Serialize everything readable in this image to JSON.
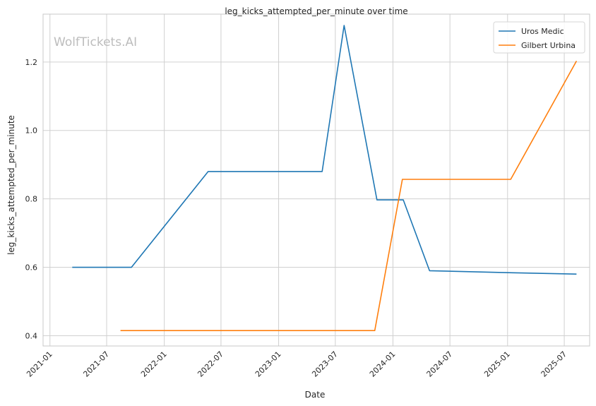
{
  "chart_data": {
    "type": "line",
    "title": "leg_kicks_attempted_per_minute over time",
    "xlabel": "Date",
    "ylabel": "leg_kicks_attempted_per_minute",
    "watermark": "WolfTickets.AI",
    "x_ticks": [
      "2021-01",
      "2021-07",
      "2022-01",
      "2022-07",
      "2023-01",
      "2023-07",
      "2024-01",
      "2024-07",
      "2025-01",
      "2025-07"
    ],
    "y_ticks": [
      "0.4",
      "0.6",
      "0.8",
      "1.0",
      "1.2"
    ],
    "xlim": [
      "2020-12-10",
      "2025-09-20"
    ],
    "ylim": [
      0.37,
      1.34
    ],
    "grid": true,
    "legend_position": "top-right",
    "series": [
      {
        "name": "Uros Medic",
        "color": "#1f77b4",
        "points": [
          {
            "x": "2021-03-13",
            "y": 0.6
          },
          {
            "x": "2021-09-18",
            "y": 0.6
          },
          {
            "x": "2022-05-21",
            "y": 0.88
          },
          {
            "x": "2023-05-20",
            "y": 0.88
          },
          {
            "x": "2023-07-29",
            "y": 1.307
          },
          {
            "x": "2023-11-11",
            "y": 0.797
          },
          {
            "x": "2024-02-03",
            "y": 0.797
          },
          {
            "x": "2024-04-27",
            "y": 0.59
          },
          {
            "x": "2025-01-18",
            "y": 0.584
          },
          {
            "x": "2025-08-09",
            "y": 0.58
          }
        ]
      },
      {
        "name": "Gilbert Urbina",
        "color": "#ff7f0e",
        "points": [
          {
            "x": "2021-08-14",
            "y": 0.415
          },
          {
            "x": "2023-11-04",
            "y": 0.415
          },
          {
            "x": "2024-01-31",
            "y": 0.857
          },
          {
            "x": "2025-01-11",
            "y": 0.857
          },
          {
            "x": "2025-08-09",
            "y": 1.203
          }
        ]
      }
    ]
  }
}
